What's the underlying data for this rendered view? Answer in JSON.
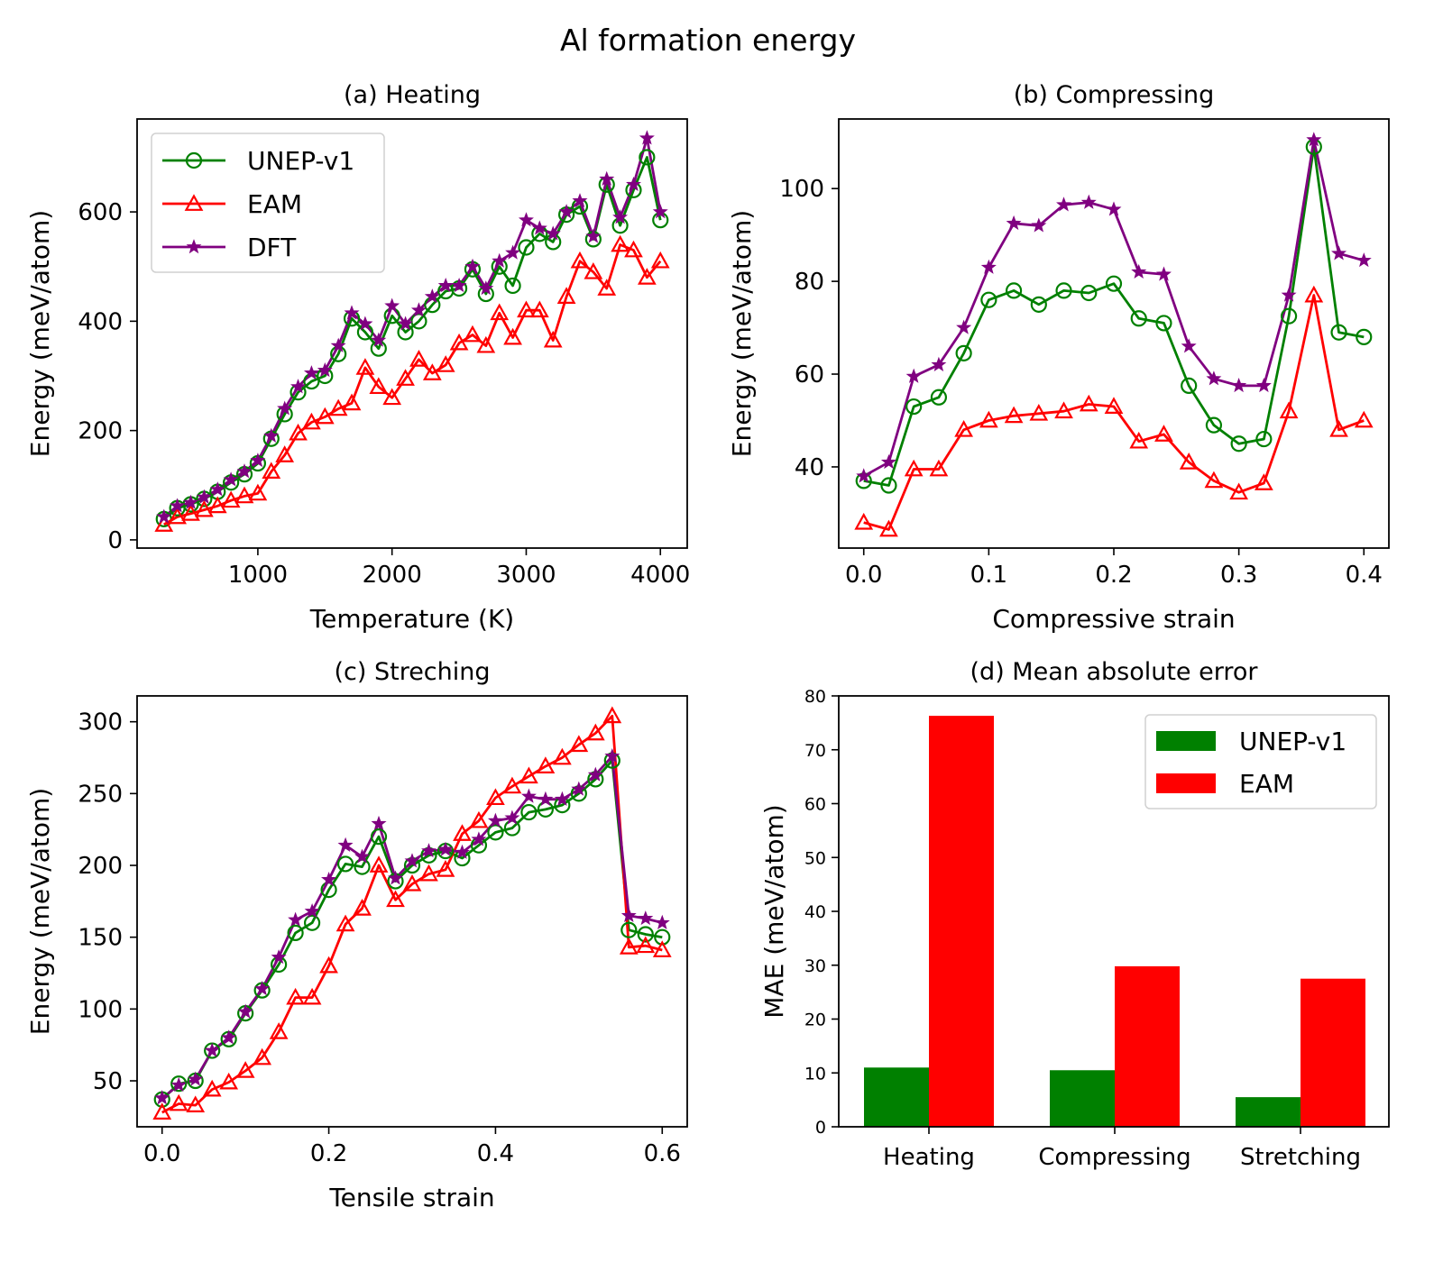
{
  "figure": {
    "title": "Al formation energy"
  },
  "chart_data": [
    {
      "id": "a",
      "type": "line",
      "title": "(a) Heating",
      "xlabel": "Temperature (K)",
      "ylabel": "Energy (meV/atom)",
      "xlim": [
        100,
        4200
      ],
      "ylim": [
        -15,
        770
      ],
      "xticks": [
        1000,
        2000,
        3000,
        4000
      ],
      "xtick_labels": [
        "1000",
        "2000",
        "3000",
        "4000"
      ],
      "yticks": [
        0,
        200,
        400,
        600
      ],
      "ytick_labels": [
        "0",
        "200",
        "400",
        "600"
      ],
      "grid": false,
      "legend": {
        "position": "top-left",
        "entries": [
          "UNEP-v1",
          "EAM",
          "DFT"
        ]
      },
      "x": [
        300,
        400,
        500,
        600,
        700,
        800,
        900,
        1000,
        1100,
        1200,
        1300,
        1400,
        1500,
        1600,
        1700,
        1800,
        1900,
        2000,
        2100,
        2200,
        2300,
        2400,
        2500,
        2600,
        2700,
        2800,
        2900,
        3000,
        3100,
        3200,
        3300,
        3400,
        3500,
        3600,
        3700,
        3800,
        3900,
        4000
      ],
      "series": [
        {
          "name": "UNEP-v1",
          "color": "#008000",
          "marker": "circle-open",
          "values": [
            38,
            58,
            65,
            75,
            88,
            105,
            120,
            140,
            185,
            230,
            270,
            290,
            300,
            340,
            405,
            380,
            350,
            410,
            380,
            400,
            430,
            455,
            460,
            495,
            450,
            500,
            465,
            535,
            560,
            545,
            595,
            610,
            550,
            650,
            575,
            640,
            700,
            585
          ]
        },
        {
          "name": "EAM",
          "color": "#ff0000",
          "marker": "triangle-open",
          "values": [
            28,
            42,
            48,
            55,
            62,
            72,
            80,
            85,
            125,
            155,
            195,
            215,
            225,
            240,
            250,
            315,
            280,
            260,
            295,
            330,
            305,
            320,
            360,
            375,
            355,
            415,
            370,
            420,
            420,
            365,
            445,
            510,
            490,
            460,
            540,
            530,
            480,
            510
          ]
        },
        {
          "name": "DFT",
          "color": "#800080",
          "marker": "star",
          "values": [
            42,
            62,
            68,
            78,
            92,
            110,
            125,
            145,
            190,
            240,
            280,
            305,
            310,
            355,
            415,
            395,
            365,
            428,
            395,
            420,
            445,
            465,
            465,
            500,
            460,
            510,
            525,
            585,
            570,
            560,
            600,
            620,
            555,
            660,
            590,
            650,
            735,
            600
          ]
        }
      ]
    },
    {
      "id": "b",
      "type": "line",
      "title": "(b) Compressing",
      "xlabel": "Compressive strain",
      "ylabel": "Energy (meV/atom)",
      "xlim": [
        -0.02,
        0.42
      ],
      "ylim": [
        22.5,
        115
      ],
      "xticks": [
        0.0,
        0.1,
        0.2,
        0.3,
        0.4
      ],
      "xtick_labels": [
        "0.0",
        "0.1",
        "0.2",
        "0.3",
        "0.4"
      ],
      "yticks": [
        40,
        60,
        80,
        100
      ],
      "ytick_labels": [
        "40",
        "60",
        "80",
        "100"
      ],
      "grid": false,
      "x": [
        0.0,
        0.02,
        0.04,
        0.06,
        0.08,
        0.1,
        0.12,
        0.14,
        0.16,
        0.18,
        0.2,
        0.22,
        0.24,
        0.26,
        0.28,
        0.3,
        0.32,
        0.34,
        0.36,
        0.38,
        0.4
      ],
      "series": [
        {
          "name": "UNEP-v1",
          "color": "#008000",
          "marker": "circle-open",
          "values": [
            37,
            36,
            53,
            55,
            64.5,
            76,
            78,
            75,
            78,
            77.5,
            79.5,
            72,
            71,
            57.5,
            49,
            45,
            46,
            72.5,
            109,
            69,
            68
          ]
        },
        {
          "name": "EAM",
          "color": "#ff0000",
          "marker": "triangle-open",
          "values": [
            28,
            26.5,
            39.5,
            39.5,
            48,
            50,
            51,
            51.5,
            52,
            53.5,
            53,
            45.5,
            47,
            41,
            37,
            34.5,
            36.5,
            52,
            77,
            48,
            50
          ]
        },
        {
          "name": "DFT",
          "color": "#800080",
          "marker": "star",
          "values": [
            38,
            41,
            59.5,
            62,
            70,
            83,
            92.5,
            92,
            96.5,
            97,
            95.5,
            82,
            81.5,
            66,
            59,
            57.5,
            57.5,
            77,
            110.5,
            86,
            84.5
          ]
        }
      ]
    },
    {
      "id": "c",
      "type": "line",
      "title": "(c) Streching",
      "xlabel": "Tensile strain",
      "ylabel": "Energy (meV/atom)",
      "xlim": [
        -0.03,
        0.63
      ],
      "ylim": [
        18,
        318
      ],
      "xticks": [
        0.0,
        0.2,
        0.4,
        0.6
      ],
      "xtick_labels": [
        "0.0",
        "0.2",
        "0.4",
        "0.6"
      ],
      "yticks": [
        50,
        100,
        150,
        200,
        250,
        300
      ],
      "ytick_labels": [
        "50",
        "100",
        "150",
        "200",
        "250",
        "300"
      ],
      "grid": false,
      "x": [
        0.0,
        0.02,
        0.04,
        0.06,
        0.08,
        0.1,
        0.12,
        0.14,
        0.16,
        0.18,
        0.2,
        0.22,
        0.24,
        0.26,
        0.28,
        0.3,
        0.32,
        0.34,
        0.36,
        0.38,
        0.4,
        0.42,
        0.44,
        0.46,
        0.48,
        0.5,
        0.52,
        0.54,
        0.56,
        0.58,
        0.6
      ],
      "series": [
        {
          "name": "UNEP-v1",
          "color": "#008000",
          "marker": "circle-open",
          "values": [
            37,
            48,
            50,
            71,
            79,
            97,
            113,
            131,
            153,
            160,
            183,
            201,
            199,
            220,
            189,
            200,
            207,
            210,
            205,
            214,
            223,
            226,
            237,
            239,
            242,
            250,
            260,
            273,
            155,
            152,
            150
          ]
        },
        {
          "name": "EAM",
          "color": "#ff0000",
          "marker": "triangle-open",
          "values": [
            28,
            34,
            33,
            44,
            49,
            57,
            66,
            84,
            108,
            108,
            130,
            159,
            170,
            200,
            176,
            187,
            194,
            197,
            222,
            231,
            247,
            255,
            262,
            269,
            275,
            284,
            292,
            304,
            143,
            144,
            141
          ]
        },
        {
          "name": "DFT",
          "color": "#800080",
          "marker": "star",
          "values": [
            38,
            47,
            51,
            71,
            80,
            98,
            114,
            136,
            162,
            168,
            190,
            214,
            206,
            229,
            191,
            203,
            210,
            211,
            209,
            218,
            231,
            233,
            248,
            246,
            246,
            253,
            263,
            276,
            165,
            163,
            160
          ]
        }
      ]
    },
    {
      "id": "d",
      "type": "bar",
      "title": "(d) Mean absolute error",
      "xlabel": "",
      "ylabel": "MAE (meV/atom)",
      "ylim": [
        0,
        80
      ],
      "yticks": [
        0,
        10,
        20,
        30,
        40,
        50,
        60,
        70,
        80
      ],
      "ytick_labels": [
        "0",
        "10",
        "20",
        "30",
        "40",
        "50",
        "60",
        "70",
        "80"
      ],
      "grid": false,
      "legend": {
        "position": "top-right",
        "entries": [
          "UNEP-v1",
          "EAM"
        ]
      },
      "categories": [
        "Heating",
        "Compressing",
        "Stretching"
      ],
      "series": [
        {
          "name": "UNEP-v1",
          "color": "#008000",
          "values": [
            11.0,
            10.5,
            5.5
          ]
        },
        {
          "name": "EAM",
          "color": "#ff0000",
          "values": [
            76.3,
            29.8,
            27.5
          ]
        }
      ]
    }
  ]
}
